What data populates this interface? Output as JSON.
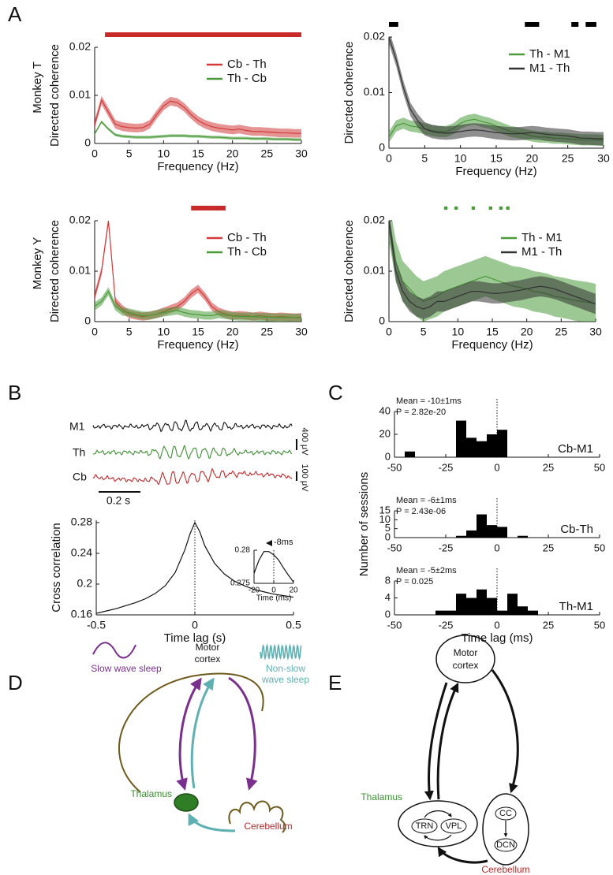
{
  "panel_labels": [
    "A",
    "B",
    "C",
    "D",
    "E"
  ],
  "traces": {
    "labels": [
      "M1",
      "Th",
      "Cb"
    ],
    "colors": [
      "#111111",
      "#3f8f35",
      "#c0282a"
    ],
    "scale_labels": [
      "400 μV",
      "100 μV",
      "0.2 s"
    ]
  },
  "diagram_d": {
    "slow_wave": "Slow wave sleep",
    "motor": [
      "Motor",
      "cortex"
    ],
    "non_slow": [
      "Non-slow",
      "wave sleep"
    ],
    "thalamus": "Thalamus",
    "cerebellum": "Cerebellum"
  },
  "diagram_e": {
    "motor": [
      "Motor",
      "cortex"
    ],
    "thalamus": "Thalamus",
    "trn": "TRN",
    "vpl": "VPL",
    "cc": "CC",
    "dcn": "DCN",
    "cerebellum": "Cerebellum"
  },
  "chart_data": [
    {
      "type": "line",
      "side_label": "Monkey T",
      "xlabel": "Frequency (Hz)",
      "ylabel": "Directed coherence",
      "x": [
        0,
        1,
        2,
        3,
        4,
        5,
        6,
        7,
        8,
        9,
        10,
        11,
        12,
        13,
        14,
        15,
        16,
        17,
        18,
        19,
        20,
        21,
        22,
        23,
        24,
        25,
        26,
        27,
        28,
        29,
        30
      ],
      "xlim": [
        0,
        30
      ],
      "xticks": [
        0,
        5,
        10,
        15,
        20,
        25,
        30
      ],
      "ylim": [
        0,
        0.02
      ],
      "yticks": [
        0,
        0.01,
        0.02
      ],
      "legend": "upper right",
      "significance": {
        "color": "#c92a2a",
        "style": "solid",
        "ranges": [
          [
            1.5,
            30
          ]
        ]
      },
      "series": [
        {
          "name": "Cb - Th",
          "color": "#d23b3b",
          "error": 0.0009,
          "values": [
            0.004,
            0.009,
            0.0065,
            0.004,
            0.0035,
            0.0033,
            0.0032,
            0.0033,
            0.004,
            0.006,
            0.0078,
            0.0088,
            0.0085,
            0.0075,
            0.006,
            0.0048,
            0.004,
            0.0035,
            0.0032,
            0.003,
            0.0028,
            0.003,
            0.0027,
            0.0025,
            0.0025,
            0.0024,
            0.0023,
            0.0022,
            0.0022,
            0.0021,
            0.0021
          ]
        },
        {
          "name": "Th - Cb",
          "color": "#4a9a3a",
          "error": 0.0003,
          "values": [
            0.002,
            0.0045,
            0.003,
            0.0018,
            0.0015,
            0.0014,
            0.0013,
            0.0013,
            0.0013,
            0.0014,
            0.0015,
            0.0016,
            0.0016,
            0.0016,
            0.0015,
            0.0015,
            0.0014,
            0.0013,
            0.0013,
            0.0012,
            0.0011,
            0.0011,
            0.0011,
            0.001,
            0.001,
            0.001,
            0.0009,
            0.0009,
            0.0009,
            0.0008,
            0.0008
          ]
        }
      ]
    },
    {
      "type": "line",
      "xlabel": "Frequency (Hz)",
      "ylabel": "Directed coherence",
      "x": [
        0,
        1,
        2,
        3,
        4,
        5,
        6,
        7,
        8,
        9,
        10,
        11,
        12,
        13,
        14,
        15,
        16,
        17,
        18,
        19,
        20,
        21,
        22,
        23,
        24,
        25,
        26,
        27,
        28,
        29,
        30
      ],
      "xlim": [
        0,
        30
      ],
      "xticks": [
        0,
        5,
        10,
        15,
        20,
        25,
        30
      ],
      "ylim": [
        0,
        0.02
      ],
      "yticks": [
        0,
        0.01,
        0.02
      ],
      "legend": "upper right",
      "significance": {
        "color": "#000000",
        "style": "solid",
        "ranges": [
          [
            0,
            1.3
          ],
          [
            19,
            21
          ],
          [
            25.5,
            26.5
          ],
          [
            27.5,
            29
          ]
        ]
      },
      "series": [
        {
          "name": "Th - M1",
          "color": "#4a9a3a",
          "error": 0.001,
          "values": [
            0.002,
            0.004,
            0.0045,
            0.004,
            0.0038,
            0.0035,
            0.0032,
            0.003,
            0.003,
            0.0035,
            0.0045,
            0.005,
            0.0052,
            0.0048,
            0.0045,
            0.004,
            0.0035,
            0.003,
            0.0028,
            0.0025,
            0.0022,
            0.002,
            0.002,
            0.0018,
            0.0018,
            0.0017,
            0.0016,
            0.0015,
            0.0015,
            0.0015,
            0.0014
          ]
        },
        {
          "name": "M1 - Th",
          "color": "#333333",
          "error": 0.0012,
          "values": [
            0.02,
            0.016,
            0.011,
            0.007,
            0.005,
            0.0035,
            0.003,
            0.0028,
            0.0027,
            0.0028,
            0.003,
            0.0032,
            0.0033,
            0.0032,
            0.003,
            0.0028,
            0.0027,
            0.0026,
            0.0026,
            0.0027,
            0.0028,
            0.0027,
            0.0025,
            0.0024,
            0.0023,
            0.0022,
            0.002,
            0.0018,
            0.0018,
            0.0017,
            0.0017
          ]
        }
      ]
    },
    {
      "type": "line",
      "side_label": "Monkey Y",
      "xlabel": "Frequency (Hz)",
      "ylabel": "Directed coherence",
      "x": [
        0,
        1,
        2,
        3,
        4,
        5,
        6,
        7,
        8,
        9,
        10,
        11,
        12,
        13,
        14,
        15,
        16,
        17,
        18,
        19,
        20,
        21,
        22,
        23,
        24,
        25,
        26,
        27,
        28,
        29,
        30
      ],
      "xlim": [
        0,
        30
      ],
      "xticks": [
        0,
        5,
        10,
        15,
        20,
        25,
        30
      ],
      "ylim": [
        0,
        0.02
      ],
      "yticks": [
        0,
        0.01,
        0.02
      ],
      "legend": "upper right",
      "significance": {
        "color": "#c92a2a",
        "style": "solid",
        "ranges": [
          [
            14,
            19
          ]
        ]
      },
      "series": [
        {
          "name": "Cb - Th",
          "color": "#d23b3b",
          "error": 0.0008,
          "values": [
            0.005,
            0.01,
            0.02,
            0.004,
            0.0025,
            0.0015,
            0.0012,
            0.001,
            0.0012,
            0.0015,
            0.002,
            0.0025,
            0.003,
            0.004,
            0.0055,
            0.0065,
            0.005,
            0.003,
            0.002,
            0.0015,
            0.0012,
            0.0013,
            0.0012,
            0.001,
            0.0012,
            0.001,
            0.0009,
            0.001,
            0.0009,
            0.0008,
            0.0009
          ]
        },
        {
          "name": "Th - Cb",
          "color": "#4a9a3a",
          "error": 0.0008,
          "values": [
            0.003,
            0.004,
            0.006,
            0.003,
            0.002,
            0.0018,
            0.0015,
            0.0012,
            0.0012,
            0.0015,
            0.0018,
            0.002,
            0.0022,
            0.0018,
            0.0015,
            0.0014,
            0.0012,
            0.0012,
            0.0015,
            0.0013,
            0.0011,
            0.001,
            0.001,
            0.001,
            0.0009,
            0.0009,
            0.0008,
            0.0008,
            0.0008,
            0.0008,
            0.0007
          ]
        }
      ]
    },
    {
      "type": "line",
      "xlabel": "Frequency (Hz)",
      "ylabel": "Directed coherence",
      "x": [
        0,
        1,
        2,
        3,
        4,
        5,
        6,
        7,
        8,
        9,
        10,
        11,
        12,
        13,
        14,
        15,
        16,
        17,
        18,
        19,
        20,
        21,
        22,
        23,
        24,
        25,
        26,
        27,
        28,
        29,
        30
      ],
      "xlim": [
        0,
        30
      ],
      "xticks": [
        0,
        5,
        10,
        15,
        20,
        25,
        30
      ],
      "ylim": [
        0,
        0.02
      ],
      "yticks": [
        0,
        0.01,
        0.02
      ],
      "legend": "upper right",
      "significance": {
        "color": "#4a9a3a",
        "style": "dotted",
        "ranges": [
          [
            8,
            8.5
          ],
          [
            9.5,
            10
          ],
          [
            12,
            12.5
          ],
          [
            14.5,
            15
          ],
          [
            16,
            16.5
          ],
          [
            17,
            17.5
          ]
        ]
      },
      "series": [
        {
          "name": "Th - M1",
          "color": "#4a9a3a",
          "error": 0.004,
          "values": [
            0.02,
            0.012,
            0.008,
            0.0065,
            0.005,
            0.004,
            0.0045,
            0.005,
            0.006,
            0.0065,
            0.007,
            0.0075,
            0.008,
            0.0085,
            0.009,
            0.0085,
            0.008,
            0.0075,
            0.007,
            0.0068,
            0.0065,
            0.006,
            0.0058,
            0.0055,
            0.005,
            0.0048,
            0.0045,
            0.0042,
            0.004,
            0.0038,
            0.0035
          ]
        },
        {
          "name": "M1 - Th",
          "color": "#333333",
          "error": 0.002,
          "values": [
            0.02,
            0.01,
            0.006,
            0.004,
            0.003,
            0.0025,
            0.003,
            0.004,
            0.004,
            0.0045,
            0.005,
            0.0055,
            0.006,
            0.006,
            0.0058,
            0.0056,
            0.0056,
            0.0058,
            0.006,
            0.0062,
            0.0065,
            0.0068,
            0.007,
            0.0068,
            0.0065,
            0.006,
            0.0055,
            0.005,
            0.0045,
            0.004,
            0.0035
          ]
        }
      ]
    },
    {
      "type": "line",
      "xlabel": "Time lag (s)",
      "ylabel": "Cross correlation",
      "x": [
        -0.5,
        -0.45,
        -0.4,
        -0.35,
        -0.3,
        -0.25,
        -0.2,
        -0.15,
        -0.1,
        -0.05,
        -0.025,
        0,
        0.025,
        0.05,
        0.1,
        0.15,
        0.2,
        0.25,
        0.3,
        0.35,
        0.4,
        0.45,
        0.5
      ],
      "xlim": [
        -0.5,
        0.5
      ],
      "xticks": [
        -0.5,
        0,
        0.5
      ],
      "ylim": [
        0.16,
        0.283
      ],
      "yticks": [
        0.16,
        0.2,
        0.24,
        0.28
      ],
      "reference_lines": [
        0
      ],
      "series": [
        {
          "color": "#111111",
          "values": [
            0.162,
            0.165,
            0.168,
            0.172,
            0.176,
            0.181,
            0.188,
            0.198,
            0.215,
            0.245,
            0.265,
            0.28,
            0.268,
            0.25,
            0.227,
            0.213,
            0.204,
            0.198,
            0.193,
            0.19,
            0.187,
            0.185,
            0.183
          ]
        }
      ]
    },
    {
      "type": "line",
      "xlabel": "Time (ms)",
      "x": [
        -20,
        -15,
        -10,
        -5,
        0,
        5,
        10,
        15,
        20
      ],
      "xlim": [
        -20,
        20
      ],
      "xticks": [
        -20,
        0,
        20
      ],
      "ylim": [
        0.275,
        0.28
      ],
      "yticks": [
        0.275,
        0.28
      ],
      "reference_lines": [
        0
      ],
      "annotation": {
        "text": "-8ms",
        "x": -8
      },
      "series": [
        {
          "color": "#111111",
          "values": [
            0.2765,
            0.2785,
            0.2798,
            0.2798,
            0.2793,
            0.2785,
            0.2773,
            0.2762,
            0.2752
          ]
        }
      ]
    },
    {
      "type": "histogram",
      "label": "Cb-M1",
      "annotations": [
        "Mean = -10±1ms",
        "P = 2.82e-20"
      ],
      "color": "#000000",
      "bins": [
        -50,
        -45,
        -40,
        -35,
        -30,
        -25,
        -20,
        -15,
        -10,
        -5,
        0,
        5,
        10,
        15,
        20,
        25,
        30,
        35,
        40,
        45,
        50
      ],
      "counts": [
        0,
        5,
        0,
        0,
        0,
        0,
        32,
        17,
        14,
        20,
        24,
        0,
        0,
        0,
        0,
        0,
        0,
        0,
        0,
        0
      ],
      "xlim": [
        -50,
        50
      ],
      "xticks": [
        -50,
        -25,
        0,
        25,
        50
      ],
      "ylim": [
        0,
        40
      ],
      "yticks": [
        0,
        20,
        40
      ],
      "reference_lines": [
        0
      ]
    },
    {
      "type": "histogram",
      "label": "Cb-Th",
      "ylabel": "Number of sessions",
      "annotations": [
        "Mean = -6±1ms",
        "P = 2.43e-06"
      ],
      "color": "#000000",
      "bins": [
        -50,
        -45,
        -40,
        -35,
        -30,
        -25,
        -20,
        -15,
        -10,
        -5,
        0,
        5,
        10,
        15,
        20,
        25,
        30,
        35,
        40,
        45,
        50
      ],
      "counts": [
        0,
        0,
        0,
        0,
        0,
        0,
        1,
        4,
        13,
        7,
        6,
        0,
        1,
        0,
        0,
        0,
        0,
        0,
        0,
        0
      ],
      "xlim": [
        -50,
        50
      ],
      "xticks": [
        -50,
        -25,
        0,
        25,
        50
      ],
      "ylim": [
        0,
        15
      ],
      "yticks": [
        0,
        5,
        10,
        15
      ],
      "reference_lines": [
        0
      ]
    },
    {
      "type": "histogram",
      "label": "Th-M1",
      "xlabel": "Time lag (ms)",
      "annotations": [
        "Mean = -5±2ms",
        "P = 0.025"
      ],
      "color": "#000000",
      "bins": [
        -50,
        -45,
        -40,
        -35,
        -30,
        -25,
        -20,
        -15,
        -10,
        -5,
        0,
        5,
        10,
        15,
        20,
        25,
        30,
        35,
        40,
        45,
        50
      ],
      "counts": [
        0,
        0,
        0,
        0,
        1,
        1,
        5,
        4,
        6,
        4,
        1,
        5,
        2,
        1,
        0,
        0,
        0,
        0,
        0,
        0
      ],
      "xlim": [
        -50,
        50
      ],
      "xticks": [
        -50,
        -25,
        0,
        25,
        50
      ],
      "ylim": [
        0,
        8
      ],
      "yticks": [
        0,
        4,
        8
      ],
      "reference_lines": [
        0
      ]
    }
  ]
}
